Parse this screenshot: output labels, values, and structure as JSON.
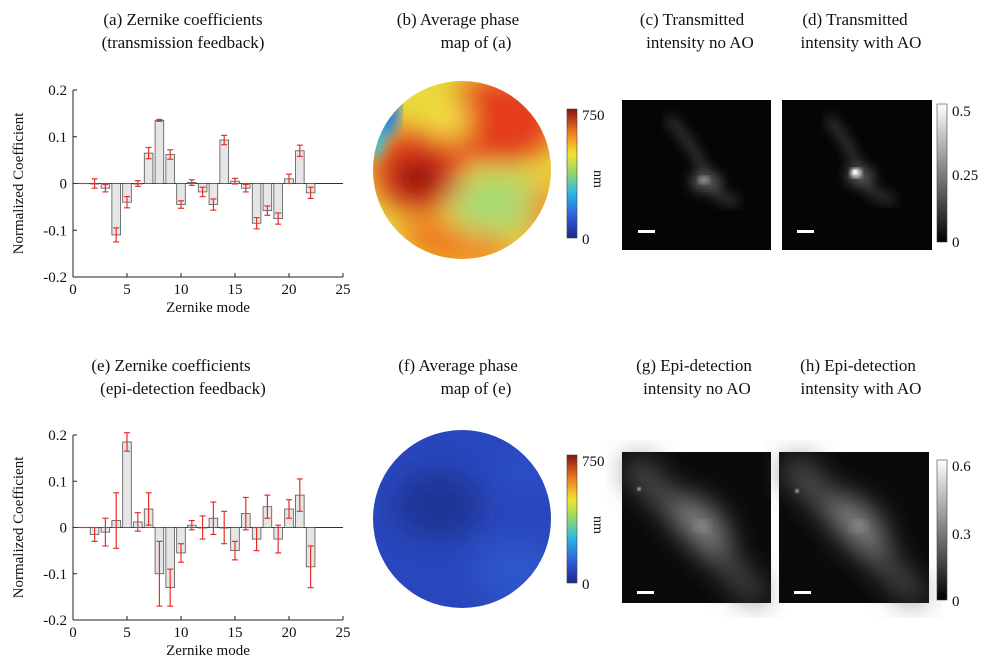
{
  "chart_data": [
    {
      "type": "bar",
      "panel": "(a)",
      "title": "Zernike coefficients (transmission feedback)",
      "title_lines": [
        "(a)    Zernike coefficients",
        "(transmission feedback)"
      ],
      "xlabel": "Zernike mode",
      "ylabel": "Normalized Coefficient",
      "xlim": [
        0,
        25
      ],
      "ylim": [
        -0.2,
        0.2
      ],
      "xticks": [
        0,
        5,
        10,
        15,
        20,
        25
      ],
      "yticks": [
        -0.2,
        -0.1,
        0,
        0.1,
        0.2
      ],
      "x": [
        2,
        3,
        4,
        5,
        6,
        7,
        8,
        9,
        10,
        11,
        12,
        13,
        14,
        15,
        16,
        17,
        18,
        19,
        20,
        21,
        22
      ],
      "values": [
        0.0,
        -0.01,
        -0.11,
        -0.04,
        0.0,
        0.065,
        0.135,
        0.062,
        -0.045,
        0.002,
        -0.018,
        -0.045,
        0.093,
        0.005,
        -0.01,
        -0.085,
        -0.058,
        -0.075,
        0.01,
        0.07,
        -0.02
      ],
      "errors": [
        0.01,
        0.008,
        0.015,
        0.012,
        0.006,
        0.012,
        0.002,
        0.01,
        0.008,
        0.006,
        0.01,
        0.012,
        0.01,
        0.006,
        0.008,
        0.012,
        0.01,
        0.012,
        0.01,
        0.012,
        0.012
      ],
      "grid": false,
      "bar_color": "#e6e6e6",
      "error_color": "#e8302a"
    },
    {
      "type": "bar",
      "panel": "(e)",
      "title": "Zernike coefficients (epi-detection feedback)",
      "title_lines": [
        "(e) Zernike coefficients",
        "(epi-detection feedback)"
      ],
      "xlabel": "Zernike mode",
      "ylabel": "Normalized Coefficient",
      "xlim": [
        0,
        25
      ],
      "ylim": [
        -0.2,
        0.2
      ],
      "xticks": [
        0,
        5,
        10,
        15,
        20,
        25
      ],
      "yticks": [
        -0.2,
        -0.1,
        0,
        0.1,
        0.2
      ],
      "x": [
        2,
        3,
        4,
        5,
        6,
        7,
        8,
        9,
        10,
        11,
        12,
        13,
        14,
        15,
        16,
        17,
        18,
        19,
        20,
        21,
        22
      ],
      "values": [
        -0.015,
        -0.01,
        0.015,
        0.185,
        0.012,
        0.04,
        -0.1,
        -0.13,
        -0.055,
        0.005,
        0.0,
        0.02,
        0.0,
        -0.05,
        0.03,
        -0.025,
        0.045,
        -0.025,
        0.04,
        0.07,
        -0.085
      ],
      "errors": [
        0.015,
        0.03,
        0.06,
        0.02,
        0.02,
        0.035,
        0.07,
        0.04,
        0.02,
        0.01,
        0.025,
        0.035,
        0.035,
        0.02,
        0.035,
        0.025,
        0.025,
        0.03,
        0.02,
        0.035,
        0.045
      ],
      "grid": false,
      "bar_color": "#e6e6e6",
      "error_color": "#e8302a"
    },
    {
      "type": "heatmap",
      "panel": "(b)",
      "title": "Average phase map of (a)",
      "title_lines": [
        "(b) Average phase",
        "map of (a)"
      ],
      "colorbar": {
        "colormap": "jet",
        "min": 0,
        "max": 750,
        "unit": "nm",
        "ticks": [
          "750",
          "0"
        ]
      }
    },
    {
      "type": "heatmap",
      "panel": "(f)",
      "title": "Average phase map of (e)",
      "title_lines": [
        "(f) Average phase",
        "map of (e)"
      ],
      "colorbar": {
        "colormap": "jet",
        "min": 0,
        "max": 750,
        "unit": "nm",
        "ticks": [
          "750",
          "0"
        ]
      }
    },
    {
      "type": "heatmap",
      "panel": "(c)",
      "title_lines": [
        "(c)  Transmitted",
        "intensity no AO"
      ],
      "colormap": "gray"
    },
    {
      "type": "heatmap",
      "panel": "(d)",
      "title_lines": [
        "(d) Transmitted",
        "intensity with AO"
      ],
      "colormap": "gray",
      "colorbar": {
        "colormap": "gray",
        "min": 0,
        "max": 0.5,
        "ticks": [
          "0.5",
          "0.25",
          "0"
        ]
      }
    },
    {
      "type": "heatmap",
      "panel": "(g)",
      "title_lines": [
        "(g) Epi-detection",
        "intensity no AO"
      ],
      "colormap": "gray"
    },
    {
      "type": "heatmap",
      "panel": "(h)",
      "title_lines": [
        "(h) Epi-detection",
        "intensity with AO"
      ],
      "colormap": "gray",
      "colorbar": {
        "colormap": "gray",
        "min": 0,
        "max": 0.6,
        "ticks": [
          "0.6",
          "0.3",
          "0"
        ]
      }
    }
  ]
}
